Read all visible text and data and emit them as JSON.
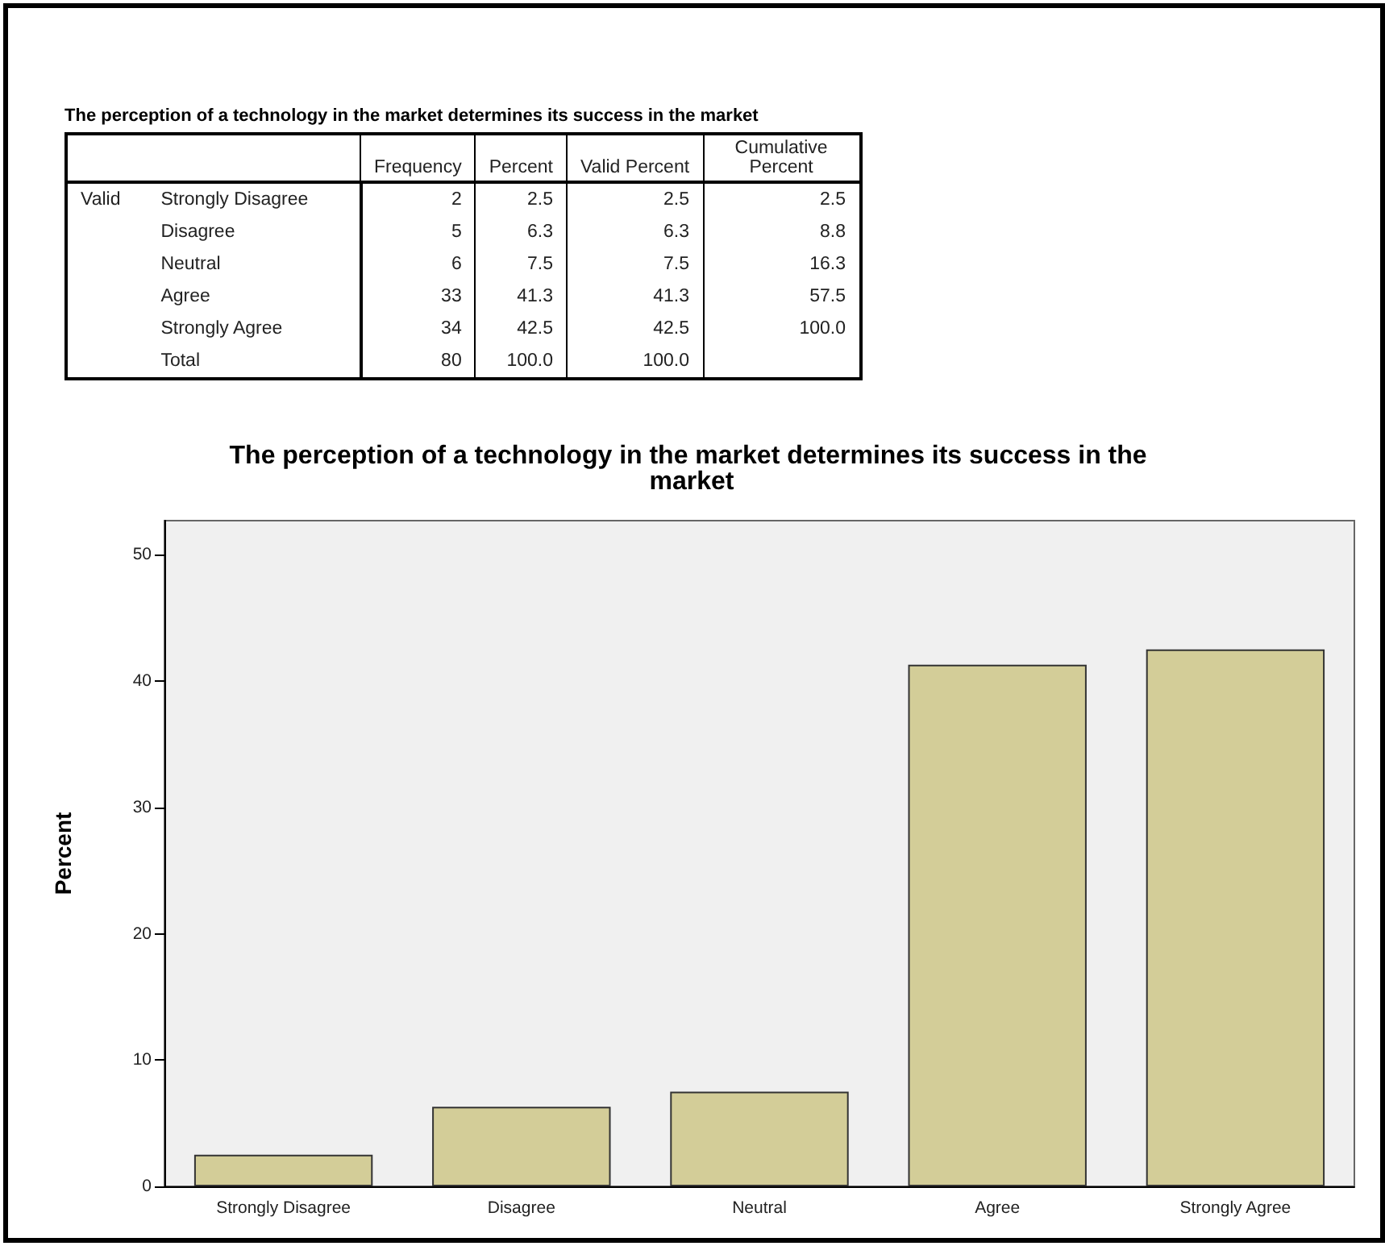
{
  "chart_data": [
    {
      "type": "other",
      "title": "The perception of a technology in the market determines its success in the market",
      "annotations": [
        "Valid"
      ],
      "categories": [
        "Strongly Disagree",
        "Disagree",
        "Neutral",
        "Agree",
        "Strongly Agree",
        "Total"
      ],
      "series": [
        {
          "name": "Frequency",
          "values": [
            2,
            5,
            6,
            33,
            34,
            80
          ],
          "value_labels": [
            "2",
            "5",
            "6",
            "33",
            "34",
            "80"
          ]
        },
        {
          "name": "Percent",
          "values": [
            2.5,
            6.3,
            7.5,
            41.3,
            42.5,
            100
          ],
          "value_labels": [
            "2.5",
            "6.3",
            "7.5",
            "41.3",
            "42.5",
            "100.0"
          ]
        },
        {
          "name": "Valid Percent",
          "values": [
            2.5,
            6.3,
            7.5,
            41.3,
            42.5,
            100
          ],
          "value_labels": [
            "2.5",
            "6.3",
            "7.5",
            "41.3",
            "42.5",
            "100.0"
          ]
        },
        {
          "name": "Cumulative Percent",
          "values": [
            2.5,
            8.8,
            16.3,
            57.5,
            100,
            null
          ],
          "value_labels": [
            "2.5",
            "8.8",
            "16.3",
            "57.5",
            "100.0",
            null
          ]
        }
      ]
    },
    {
      "type": "bar",
      "title": "The perception of a technology in the market determines its success in the market",
      "ylabel": "Percent",
      "categories": [
        "Strongly Disagree",
        "Disagree",
        "Neutral",
        "Agree",
        "Strongly Agree"
      ],
      "values": [
        2.5,
        6.3,
        7.5,
        41.3,
        42.5
      ],
      "color": "#d3cd98",
      "ylim": [
        0,
        52.7
      ],
      "yticks": [
        0,
        10,
        20,
        30,
        40,
        50
      ],
      "grid": false
    }
  ]
}
